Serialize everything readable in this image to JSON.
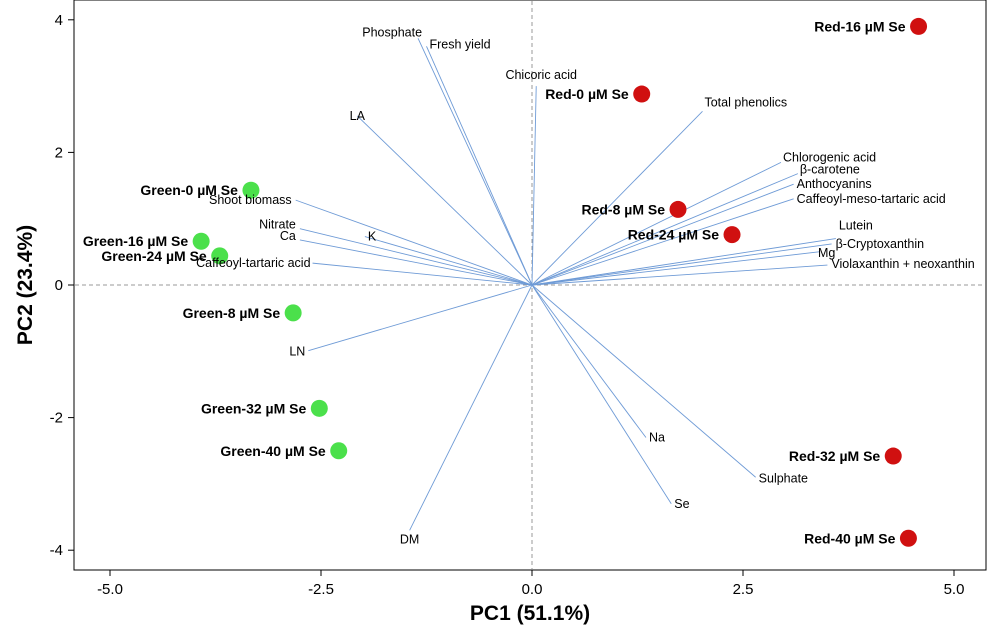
{
  "chart_data": {
    "type": "scatter",
    "title": "",
    "xlabel": "PC1 (51.1%)",
    "ylabel": "PC2 (23.4%)",
    "xlim": [
      -5.5,
      5.3
    ],
    "ylim": [
      -4.3,
      4.3
    ],
    "xticks": [
      -5.0,
      -2.5,
      0.0,
      2.5,
      5.0
    ],
    "xtick_labels": [
      "-5.0",
      "-2.5",
      "0.0",
      "2.5",
      "5.0"
    ],
    "yticks": [
      -4,
      -2,
      0,
      2,
      4
    ],
    "ytick_labels": [
      "-4",
      "-2",
      "0",
      "2",
      "4"
    ],
    "reference_lines": {
      "x": 0,
      "y": 0,
      "style": "dashed"
    },
    "grid": false,
    "colors": {
      "green": "#4be04b",
      "red": "#d01010",
      "vector": "#6f9bd6",
      "refline": "#9a9a9a"
    },
    "scores": [
      {
        "label": "Red-16 µM Se",
        "group": "red",
        "x": 4.58,
        "y": 3.9
      },
      {
        "label": "Red-0 µM Se",
        "group": "red",
        "x": 1.3,
        "y": 2.88
      },
      {
        "label": "Red-8 µM Se",
        "group": "red",
        "x": 1.73,
        "y": 1.14
      },
      {
        "label": "Red-24 µM Se",
        "group": "red",
        "x": 2.37,
        "y": 0.76
      },
      {
        "label": "Red-32 µM Se",
        "group": "red",
        "x": 4.28,
        "y": -2.58
      },
      {
        "label": "Red-40 µM Se",
        "group": "red",
        "x": 4.46,
        "y": -3.82
      },
      {
        "label": "Green-0 µM Se",
        "group": "green",
        "x": -3.33,
        "y": 1.43
      },
      {
        "label": "Green-16 µM Se",
        "group": "green",
        "x": -3.92,
        "y": 0.66
      },
      {
        "label": "Green-24 µM Se",
        "group": "green",
        "x": -3.7,
        "y": 0.44
      },
      {
        "label": "Green-8 µM Se",
        "group": "green",
        "x": -2.83,
        "y": -0.42
      },
      {
        "label": "Green-32 µM Se",
        "group": "green",
        "x": -2.52,
        "y": -1.86
      },
      {
        "label": "Green-40 µM Se",
        "group": "green",
        "x": -2.29,
        "y": -2.5
      }
    ],
    "loadings": [
      {
        "label": "Phosphate",
        "x": -1.35,
        "y": 3.72
      },
      {
        "label": "Fresh yield",
        "x": -1.25,
        "y": 3.6
      },
      {
        "label": "Chicoric acid",
        "x": 0.05,
        "y": 3.0
      },
      {
        "label": "LA",
        "x": -2.07,
        "y": 2.55
      },
      {
        "label": "Total phenolics",
        "x": 2.02,
        "y": 2.62
      },
      {
        "label": "Chlorogenic acid",
        "x": 2.95,
        "y": 1.85
      },
      {
        "label": "β-carotene",
        "x": 3.15,
        "y": 1.68
      },
      {
        "label": "Anthocyanins",
        "x": 3.1,
        "y": 1.52
      },
      {
        "label": "Caffeoyl-meso-tartaric acid",
        "x": 3.1,
        "y": 1.3
      },
      {
        "label": "Lutein",
        "x": 3.6,
        "y": 0.7
      },
      {
        "label": "β-Cryptoxanthin",
        "x": 3.55,
        "y": 0.62
      },
      {
        "label": "Mg",
        "x": 3.4,
        "y": 0.5
      },
      {
        "label": "Violaxanthin + neoxanthin",
        "x": 3.5,
        "y": 0.3
      },
      {
        "label": "Shoot biomass",
        "x": -2.8,
        "y": 1.28
      },
      {
        "label": "Nitrate",
        "x": -2.75,
        "y": 0.85
      },
      {
        "label": "K",
        "x": -1.98,
        "y": 0.73
      },
      {
        "label": "Ca",
        "x": -2.75,
        "y": 0.68
      },
      {
        "label": "Caffeoyl-tartaric acid",
        "x": -2.6,
        "y": 0.33
      },
      {
        "label": "LN",
        "x": -2.65,
        "y": -0.99
      },
      {
        "label": "Na",
        "x": 1.35,
        "y": -2.3
      },
      {
        "label": "Sulphate",
        "x": 2.65,
        "y": -2.9
      },
      {
        "label": "Se",
        "x": 1.65,
        "y": -3.3
      },
      {
        "label": "DM",
        "x": -1.45,
        "y": -3.7
      }
    ]
  }
}
